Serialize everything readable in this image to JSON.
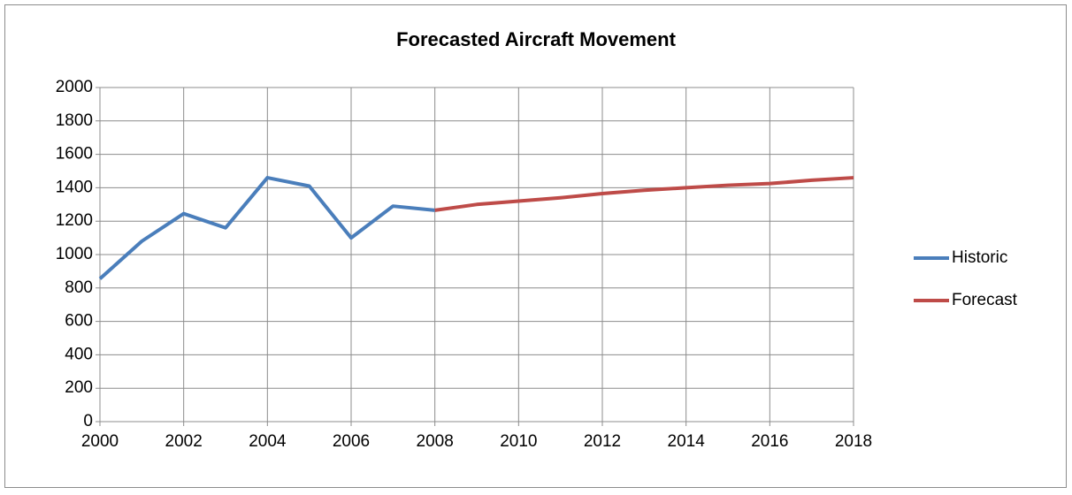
{
  "chart_data": {
    "type": "line",
    "title": "Forecasted Aircraft Movement",
    "x": [
      2000,
      2001,
      2002,
      2003,
      2004,
      2005,
      2006,
      2007,
      2008,
      2009,
      2010,
      2011,
      2012,
      2013,
      2014,
      2015,
      2016,
      2017,
      2018
    ],
    "series": [
      {
        "name": "Historic",
        "color": "#4a7ebb",
        "values": [
          855,
          1080,
          1245,
          1160,
          1460,
          1410,
          1100,
          1290,
          1265,
          null,
          null,
          null,
          null,
          null,
          null,
          null,
          null,
          null,
          null
        ]
      },
      {
        "name": "Forecast",
        "color": "#be4b48",
        "values": [
          null,
          null,
          null,
          null,
          null,
          null,
          null,
          null,
          1265,
          1300,
          1320,
          1340,
          1365,
          1385,
          1400,
          1415,
          1425,
          1445,
          1460
        ]
      }
    ],
    "xlim": [
      2000,
      2018
    ],
    "xticks": [
      2000,
      2002,
      2004,
      2006,
      2008,
      2010,
      2012,
      2014,
      2016,
      2018
    ],
    "ylim": [
      0,
      2000
    ],
    "yticks": [
      0,
      200,
      400,
      600,
      800,
      1000,
      1200,
      1400,
      1600,
      1800,
      2000
    ],
    "grid": true,
    "legend": "right"
  }
}
